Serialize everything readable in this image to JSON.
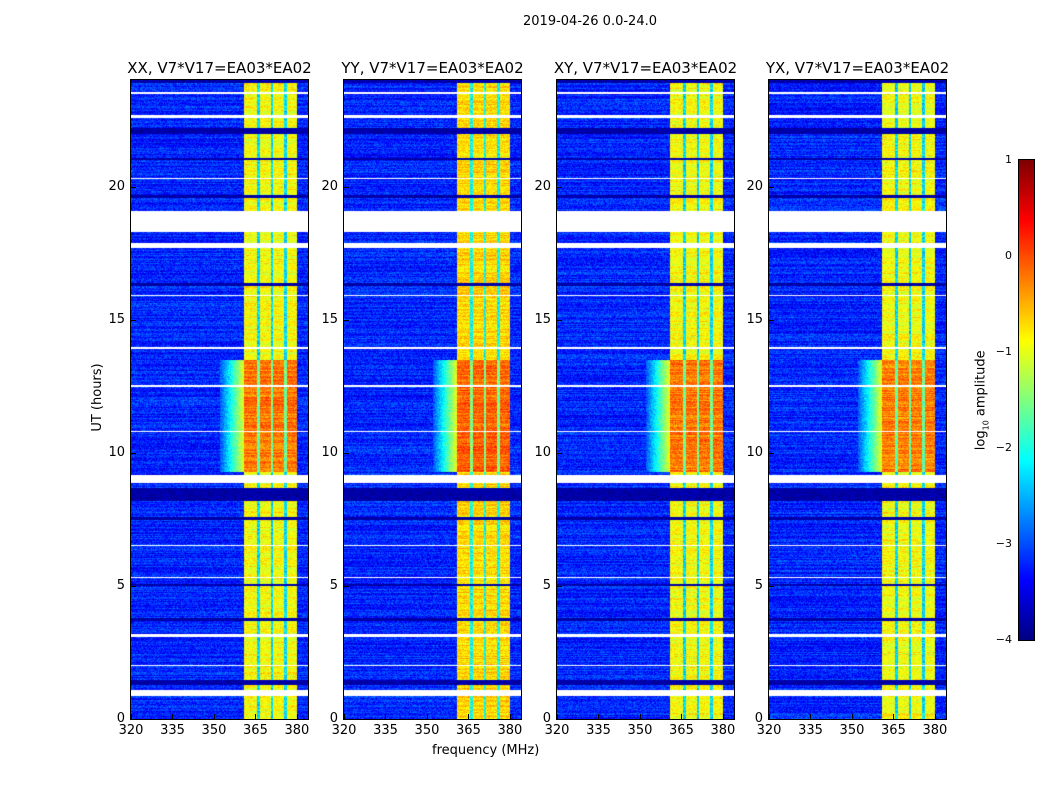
{
  "chart_data": {
    "type": "heatmap",
    "title": "2019-04-26 0.0-24.0",
    "xlabel": "frequency (MHz)",
    "ylabel": "UT (hours)",
    "xlim": [
      320,
      384
    ],
    "ylim": [
      0,
      24
    ],
    "xticks": [
      "320",
      "335",
      "350",
      "365",
      "380"
    ],
    "xtick_values": [
      320,
      335,
      350,
      365,
      380
    ],
    "yticks": [
      "0",
      "5",
      "10",
      "15",
      "20"
    ],
    "ytick_values": [
      0,
      5,
      10,
      15,
      20
    ],
    "panels": [
      {
        "title": "XX, V7*V17=EA03*EA02",
        "band_level": -0.9,
        "flare_level": -0.2
      },
      {
        "title": "YY, V7*V17=EA03*EA02",
        "band_level": -0.7,
        "flare_level": -0.1
      },
      {
        "title": "XY, V7*V17=EA03*EA02",
        "band_level": -0.9,
        "flare_level": -0.2
      },
      {
        "title": "YX, V7*V17=EA03*EA02",
        "band_level": -0.9,
        "flare_level": -0.25
      }
    ],
    "bright_band_mhz": [
      360.5,
      380
    ],
    "band_gaps_mhz": [
      365.8,
      370.8,
      375.7
    ],
    "background_level": -3.2,
    "flare_hours": [
      9.3,
      13.5
    ],
    "flagged_hours": [
      [
        18.3,
        19.1
      ],
      [
        0.9,
        1.1
      ],
      [
        8.9,
        9.2
      ],
      [
        22.6,
        22.7
      ],
      [
        17.7,
        17.9
      ],
      [
        13.9,
        14.0
      ],
      [
        3.1,
        3.2
      ],
      [
        5.3,
        5.35
      ],
      [
        12.5,
        12.55
      ],
      [
        20.3,
        20.35
      ],
      [
        2.0,
        2.05
      ],
      [
        6.5,
        6.55
      ],
      [
        10.8,
        10.85
      ],
      [
        15.9,
        15.95
      ],
      [
        23.5,
        23.55
      ]
    ],
    "dark_hours": [
      [
        8.2,
        8.7
      ],
      [
        1.3,
        1.5
      ],
      [
        21.0,
        21.1
      ],
      [
        22.0,
        22.2
      ],
      [
        7.5,
        7.6
      ],
      [
        16.3,
        16.4
      ],
      [
        3.7,
        3.8
      ],
      [
        5.0,
        5.1
      ],
      [
        19.6,
        19.7
      ],
      [
        23.9,
        24.0
      ]
    ],
    "colorbar": {
      "label": "log10 amplitude",
      "label_main": "log",
      "label_sub": "10",
      "label_rest": " amplitude",
      "range": [
        -4,
        1
      ],
      "ticks": [
        "1",
        "0",
        "−1",
        "−2",
        "−3",
        "−4"
      ],
      "tick_values": [
        1,
        0,
        -1,
        -2,
        -3,
        -4
      ],
      "colormap": "jet"
    }
  }
}
